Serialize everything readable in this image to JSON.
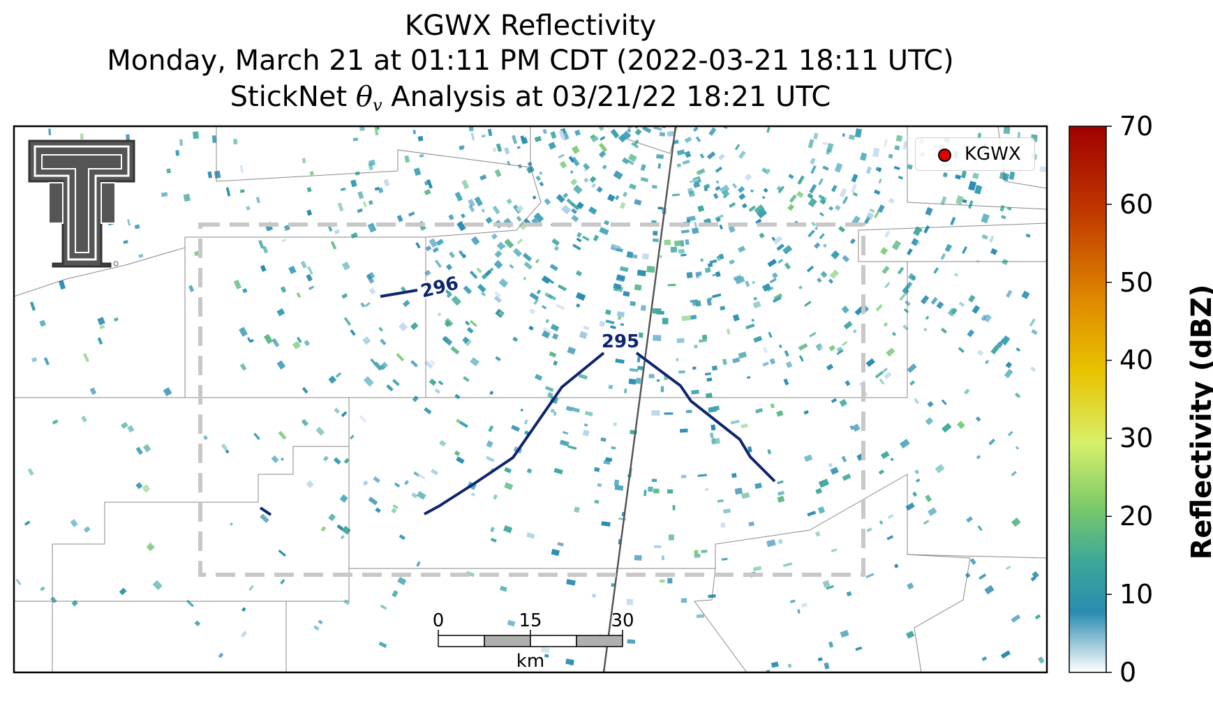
{
  "title": {
    "line1": "KGWX Reflectivity",
    "line2": "Monday, March 21 at 01:11 PM CDT (2022-03-21 18:11 UTC)",
    "line3_prefix": "StickNet ",
    "line3_symbol": "θ",
    "line3_subscript": "v",
    "line3_suffix": " Analysis at 03/21/22 18:21 UTC"
  },
  "legend": {
    "label": "KGWX",
    "marker_color": "#e00000"
  },
  "colorbar": {
    "label": "Reflectivity (dBZ)",
    "ticks": [
      "70",
      "60",
      "50",
      "40",
      "30",
      "20",
      "10",
      "0"
    ],
    "range": [
      0,
      70
    ],
    "colors": [
      "#ffffff",
      "#2b8cb0",
      "#3aa79a",
      "#79c96a",
      "#d8f06a",
      "#e8c400",
      "#e08a00",
      "#c03a00",
      "#a00000"
    ]
  },
  "contours": [
    {
      "label": "295",
      "color": "#0d2470"
    },
    {
      "label": "296",
      "color": "#0d2470"
    }
  ],
  "scalebar": {
    "ticks": [
      "0",
      "15",
      "30"
    ],
    "unit": "km"
  },
  "logo": {
    "name": "texas-tech-double-t",
    "colors": [
      "#555555",
      "#ffffff"
    ]
  }
}
